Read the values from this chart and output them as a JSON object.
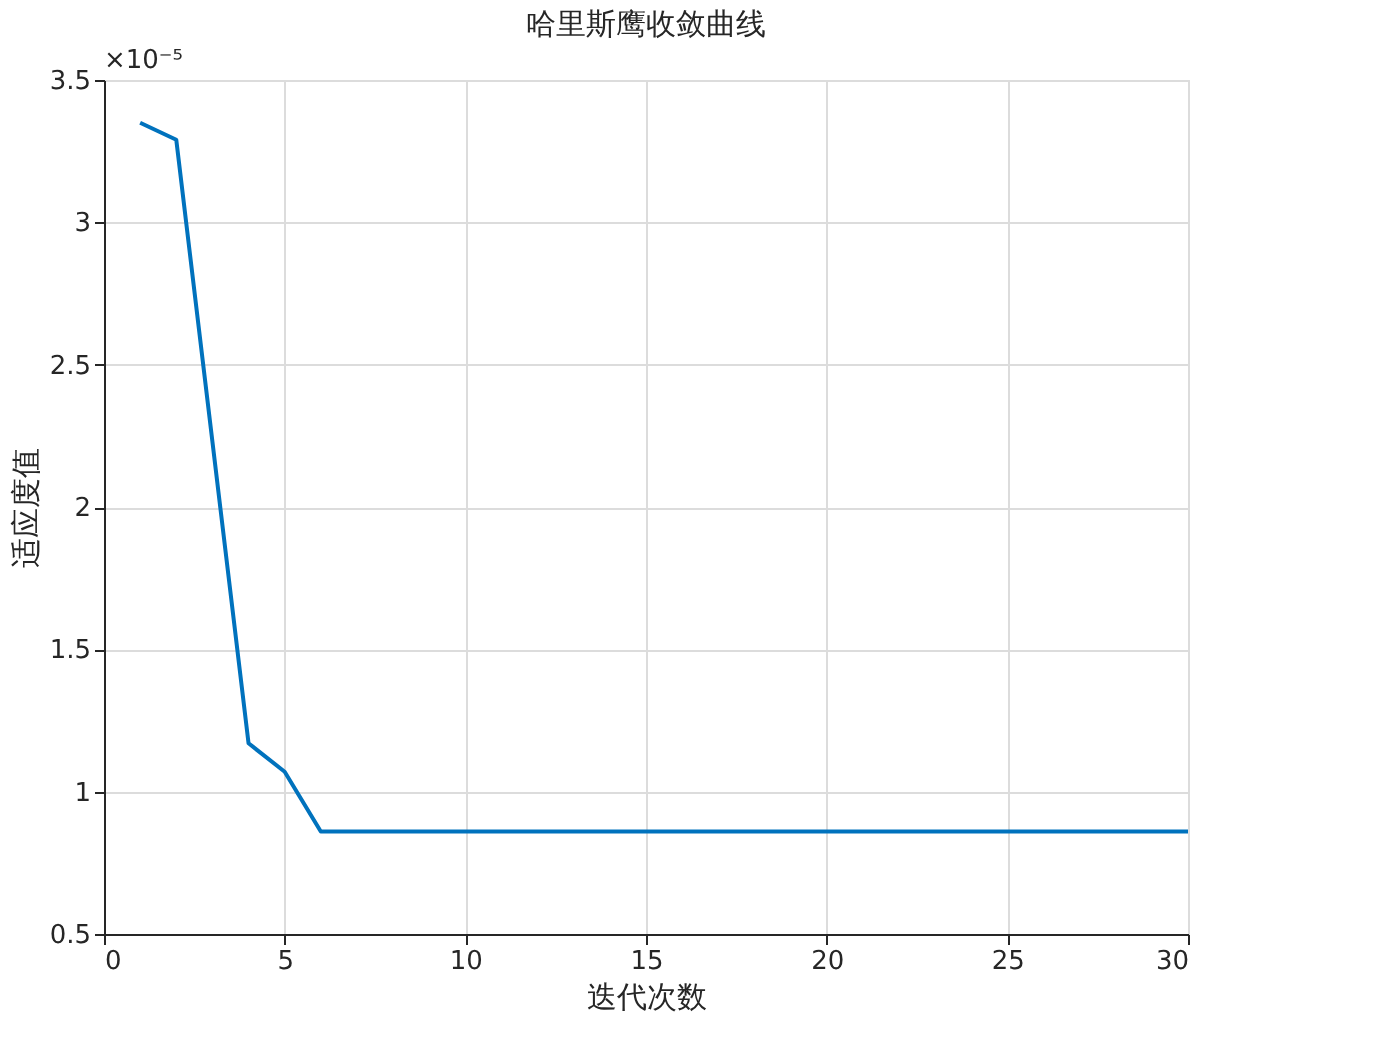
{
  "chart_data": {
    "type": "line",
    "title": "哈里斯鹰收敛曲线",
    "xlabel": "迭代次数",
    "ylabel": "适应度值",
    "annotations": [
      "×10⁻⁵"
    ],
    "x": [
      1,
      2,
      3,
      4,
      5,
      6,
      7,
      8,
      9,
      10,
      11,
      12,
      13,
      14,
      15,
      16,
      17,
      18,
      19,
      20,
      21,
      22,
      23,
      24,
      25,
      26,
      27,
      28,
      29,
      30
    ],
    "series": [
      {
        "color": "#0072bd",
        "values": [
          3.35,
          3.29,
          2.23,
          1.17,
          1.07,
          0.86,
          0.86,
          0.86,
          0.86,
          0.86,
          0.86,
          0.86,
          0.86,
          0.86,
          0.86,
          0.86,
          0.86,
          0.86,
          0.86,
          0.86,
          0.86,
          0.86,
          0.86,
          0.86,
          0.86,
          0.86,
          0.86,
          0.86,
          0.86,
          0.86
        ]
      }
    ],
    "xlim": [
      0,
      30
    ],
    "xticks": [
      0,
      5,
      10,
      15,
      20,
      25,
      30
    ],
    "ylim": [
      0.5,
      3.5
    ],
    "yticks": [
      0.5,
      1,
      1.5,
      2,
      2.5,
      3,
      3.5
    ],
    "grid": true,
    "marker": "none",
    "line_style": "solid",
    "legend": false
  }
}
